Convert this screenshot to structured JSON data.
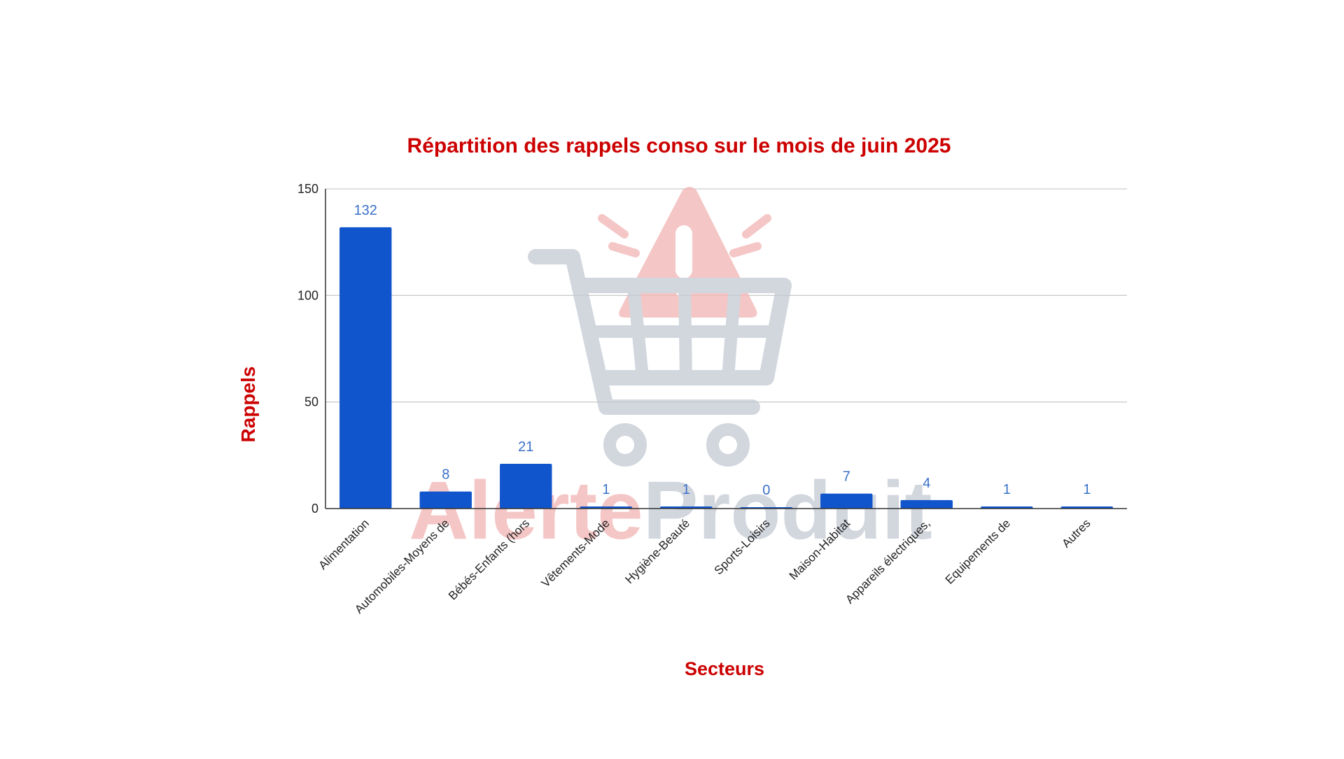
{
  "chart_data": {
    "type": "bar",
    "title": "Répartition des rappels conso sur le mois de juin 2025",
    "xlabel": "Secteurs",
    "ylabel": "Rappels",
    "categories": [
      "Alimentation",
      "Automobiles-Moyens de",
      "Bébés-Enfants (hors",
      "Vêtements-Mode",
      "Hygiène-Beauté",
      "Sports-Loisirs",
      "Maison-Habitat",
      "Appareils électriques,",
      "Equipements de",
      "Autres"
    ],
    "values": [
      132,
      8,
      21,
      1,
      1,
      0,
      7,
      4,
      1,
      1
    ],
    "data_labels": [
      "132",
      "8",
      "21",
      "1",
      "1",
      "0",
      "7",
      "4",
      "1",
      "1"
    ],
    "y_ticks": [
      0,
      50,
      100,
      150
    ],
    "ylim": [
      0,
      150
    ],
    "grid": true,
    "legend": "none",
    "colors": {
      "bar": "#1155cc",
      "data_label": "#3a70c8",
      "title": "#cc0000",
      "axis_title": "#cc0000",
      "tick_label": "#222222",
      "grid": "#cccccc",
      "axis": "#333333"
    }
  },
  "watermark": {
    "text": "AlerteProduit",
    "part1": "Alerte",
    "part2": "Produit",
    "icon": "shopping-cart-alert-icon",
    "colors": {
      "alert": "#f2b4b4",
      "cart": "#c3cad3",
      "text_red": "#f2b4b4",
      "text_gray": "#c3cad3"
    }
  }
}
